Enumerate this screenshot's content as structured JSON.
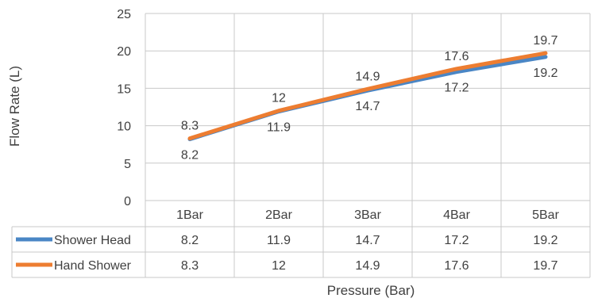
{
  "chart_data": {
    "type": "line",
    "title": "",
    "xlabel": "Pressure (Bar)",
    "ylabel": "Flow Rate (L)",
    "categories": [
      "1Bar",
      "2Bar",
      "3Bar",
      "4Bar",
      "5Bar"
    ],
    "ylim": [
      0,
      25
    ],
    "yticks": [
      "0",
      "5",
      "10",
      "15",
      "20",
      "25"
    ],
    "grid": true,
    "legend": "data-table-left",
    "series": [
      {
        "name": "Shower Head",
        "color": "#4a86c5",
        "values": [
          8.2,
          11.9,
          14.7,
          17.2,
          19.2
        ],
        "labels": [
          "8.2",
          "11.9",
          "14.7",
          "17.2",
          "19.2"
        ]
      },
      {
        "name": "Hand Shower",
        "color": "#ed7d31",
        "values": [
          8.3,
          12,
          14.9,
          17.6,
          19.7
        ],
        "labels": [
          "8.3",
          "12",
          "14.9",
          "17.6",
          "19.7"
        ]
      }
    ]
  }
}
